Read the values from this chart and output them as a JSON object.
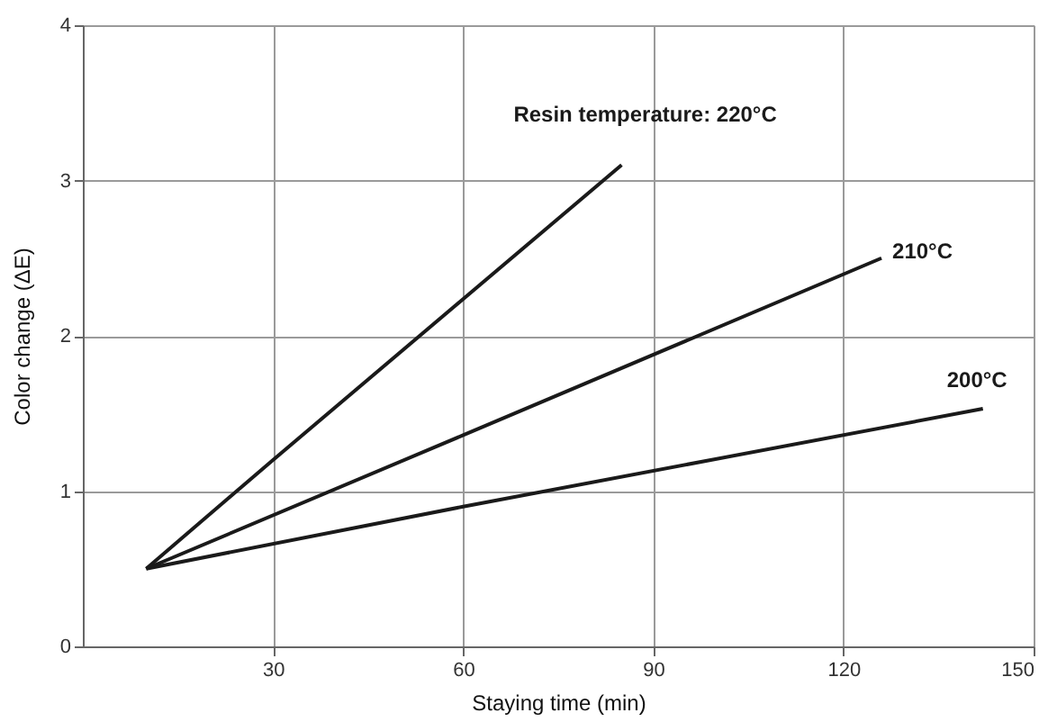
{
  "chart_data": {
    "type": "line",
    "xlabel": "Staying time (min)",
    "ylabel": "Color change (ΔE)",
    "xlim": [
      0,
      150
    ],
    "xticks": [
      30,
      60,
      90,
      120,
      150
    ],
    "ylim": [
      0,
      4
    ],
    "yticks": [
      0,
      1,
      2,
      3,
      4
    ],
    "grid": true,
    "legend": false,
    "marker": "none",
    "line_style": "solid",
    "series": [
      {
        "name": "Resin temperature: 220°C",
        "color": "#1a1a1a",
        "x": [
          10,
          30,
          85
        ],
        "values": [
          0.5,
          1.2,
          3.1
        ]
      },
      {
        "name": "210°C",
        "color": "#1a1a1a",
        "x": [
          10,
          60,
          126
        ],
        "values": [
          0.5,
          1.36,
          2.5
        ]
      },
      {
        "name": "200°C",
        "color": "#1a1a1a",
        "x": [
          10,
          60,
          142
        ],
        "values": [
          0.5,
          0.9,
          1.53
        ]
      }
    ]
  }
}
